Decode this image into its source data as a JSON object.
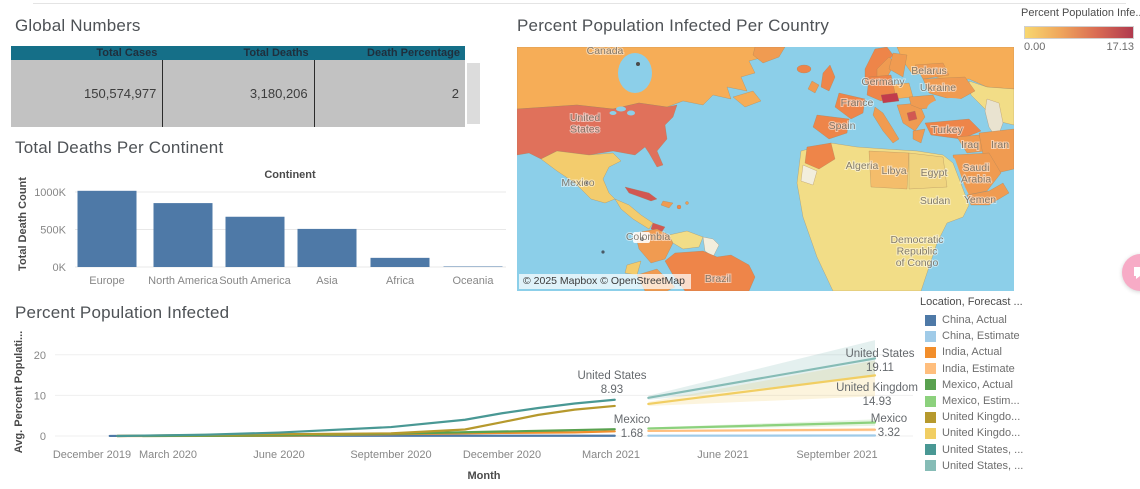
{
  "global_numbers": {
    "title": "Global Numbers",
    "columns": [
      "Total Cases",
      "Total Deaths",
      "Death Percentage"
    ],
    "values": [
      "150,574,977",
      "3,180,206",
      "2"
    ],
    "header_bg": "#156f88",
    "row_bg": "#c2c2c2"
  },
  "map_panel": {
    "title": "Percent Population Infected Per Country",
    "legend": {
      "title": "Percent Population Infe...",
      "min": "0.00",
      "max": "17.13",
      "gradient": [
        "#f8d76f",
        "#efa55c",
        "#d96b53",
        "#b03a4e"
      ]
    },
    "attribution": "© 2025 Mapbox © OpenStreetMap",
    "labels": [
      "Canada",
      "United\nStates",
      "Mexico",
      "Colombia",
      "Brazil",
      "Algeria",
      "Libya",
      "Egypt",
      "Saudi\nArabia",
      "Sudan",
      "Yemen",
      "Democratic\nRepublic\nof Congo",
      "France",
      "Spain",
      "Germany",
      "Belarus",
      "Ukraine",
      "Turkey",
      "Iran",
      "Iraq"
    ],
    "palette": {
      "ocean": "#8ccfe9",
      "yellow": "#f2dd87",
      "gold": "#f3cc6d",
      "orangelight": "#f6ad57",
      "orange": "#f09b51",
      "orangedeep": "#ee8549",
      "salmon": "#e0715b",
      "red": "#d25752",
      "darkred": "#c23b4c",
      "beige": "#e9e3d0",
      "nodata": "#f2eedd",
      "libya": "#f4bd6b",
      "egypt": "#f0d47f"
    }
  },
  "floating_button": {
    "icon": "feedback-icon",
    "color": "#f7abc6"
  },
  "chart_data": [
    {
      "type": "bar",
      "title": "Total Deaths Per Continent",
      "categories": [
        "Europe",
        "North America",
        "South America",
        "Asia",
        "Africa",
        "Oceania"
      ],
      "values": [
        1016000,
        852000,
        670000,
        508000,
        122000,
        3000
      ],
      "xlabel": "Continent",
      "ylabel": "Total Death Count",
      "yticks": [
        "0K",
        "500K",
        "1000K"
      ],
      "ytick_values": [
        0,
        500000,
        1000000
      ],
      "ylim": [
        0,
        1130000
      ],
      "bar_color": "#4e79a7",
      "grid": true
    },
    {
      "type": "line",
      "title": "Percent Population Infected",
      "xlabel": "Month",
      "ylabel": "Avg. Percent Populati...",
      "yticks": [
        0,
        10,
        20
      ],
      "ylim": [
        0,
        24.5
      ],
      "xticks": [
        "December 2019",
        "March 2020",
        "June 2020",
        "September 2020",
        "December 2020",
        "March 2021",
        "June 2021",
        "September 2021"
      ],
      "grid": true,
      "legend_position": "right",
      "series": [
        {
          "name": "China, Actual",
          "color": "#4e79a7",
          "points": [
            [
              0.7,
              0.02
            ],
            [
              3,
              0.06
            ],
            [
              6,
              0.06
            ],
            [
              9,
              0.06
            ],
            [
              12,
              0.07
            ],
            [
              15.1,
              0.07
            ]
          ]
        },
        {
          "name": "China, Estimate",
          "color": "#a0cbe8",
          "points": [
            [
              16,
              0.08
            ],
            [
              22,
              0.12
            ]
          ],
          "band": [
            [
              16,
              0,
              0.25
            ],
            [
              22,
              0,
              0.35
            ]
          ]
        },
        {
          "name": "India, Actual",
          "color": "#f28e2b",
          "points": [
            [
              1,
              0
            ],
            [
              4,
              0.01
            ],
            [
              6,
              0.05
            ],
            [
              9,
              0.45
            ],
            [
              12,
              0.75
            ],
            [
              14,
              0.9
            ],
            [
              15.1,
              1.15
            ]
          ]
        },
        {
          "name": "India, Estimate",
          "color": "#ffbe7d",
          "points": [
            [
              16,
              1.25
            ],
            [
              22,
              1.55
            ]
          ],
          "band": [
            [
              16,
              1.0,
              1.5
            ],
            [
              22,
              1.1,
              2.0
            ]
          ]
        },
        {
          "name": "Mexico, Actual",
          "color": "#59a14f",
          "points": [
            [
              2,
              0
            ],
            [
              6,
              0.15
            ],
            [
              9,
              0.55
            ],
            [
              12,
              1.1
            ],
            [
              14,
              1.45
            ],
            [
              15.1,
              1.68
            ]
          ]
        },
        {
          "name": "Mexico, Estimate",
          "color": "#8cd17d",
          "points": [
            [
              16,
              1.85
            ],
            [
              22,
              3.32
            ]
          ],
          "band": [
            [
              16,
              1.6,
              2.1
            ],
            [
              22,
              2.5,
              4.1
            ]
          ]
        },
        {
          "name": "United Kingdom, Actual",
          "color": "#b6992d",
          "points": [
            [
              1,
              0
            ],
            [
              4,
              0.25
            ],
            [
              6,
              0.45
            ],
            [
              9,
              0.65
            ],
            [
              11,
              1.6
            ],
            [
              12,
              3.4
            ],
            [
              13,
              5.2
            ],
            [
              14,
              6.5
            ],
            [
              15.1,
              7.4
            ]
          ]
        },
        {
          "name": "United Kingdom, Estimate",
          "color": "#f1ce63",
          "points": [
            [
              16,
              7.9
            ],
            [
              22,
              14.93
            ]
          ],
          "band": [
            [
              16,
              7.4,
              8.4
            ],
            [
              22,
              9.8,
              18.6
            ]
          ]
        },
        {
          "name": "United States, Actual",
          "color": "#499894",
          "points": [
            [
              1,
              0
            ],
            [
              4,
              0.3
            ],
            [
              6,
              0.85
            ],
            [
              9,
              2.2
            ],
            [
              11,
              4.0
            ],
            [
              12,
              5.6
            ],
            [
              13,
              6.9
            ],
            [
              14,
              8.0
            ],
            [
              15.1,
              8.93
            ]
          ]
        },
        {
          "name": "United States, Estimate",
          "color": "#86bcb6",
          "points": [
            [
              16,
              9.4
            ],
            [
              22,
              19.11
            ]
          ],
          "band": [
            [
              16,
              8.9,
              9.9
            ],
            [
              22,
              14.6,
              23.6
            ]
          ]
        }
      ],
      "annotations": [
        {
          "label": "United States",
          "value": "8.93"
        },
        {
          "label": "Mexico",
          "value": "1.68"
        },
        {
          "label": "United States",
          "value": "19.11"
        },
        {
          "label": "United Kingdom",
          "value": "14.93"
        },
        {
          "label": "Mexico",
          "value": "3.32"
        }
      ],
      "legend": {
        "title": "Location, Forecast ...",
        "items": [
          {
            "label": "China, Actual",
            "color": "#4e79a7"
          },
          {
            "label": "China, Estimate",
            "color": "#a0cbe8"
          },
          {
            "label": "India, Actual",
            "color": "#f28e2b"
          },
          {
            "label": "India, Estimate",
            "color": "#ffbe7d"
          },
          {
            "label": "Mexico, Actual",
            "color": "#59a14f"
          },
          {
            "label": "Mexico, Estim...",
            "color": "#8cd17d"
          },
          {
            "label": "United Kingdo...",
            "color": "#b6992d"
          },
          {
            "label": "United Kingdo...",
            "color": "#f1ce63"
          },
          {
            "label": "United States, ...",
            "color": "#499894"
          },
          {
            "label": "United States, ...",
            "color": "#86bcb6"
          }
        ]
      }
    }
  ]
}
